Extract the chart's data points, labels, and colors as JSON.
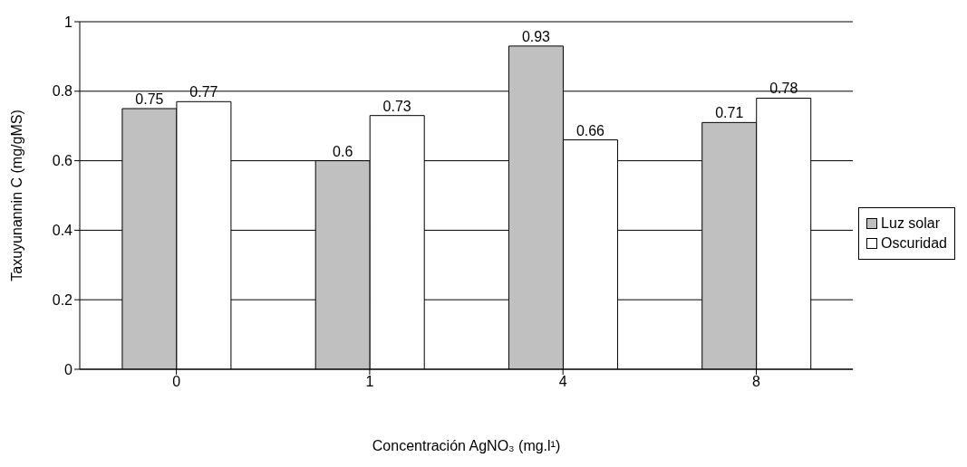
{
  "chart_data": {
    "type": "bar",
    "categories": [
      "0",
      "1",
      "4",
      "8"
    ],
    "series": [
      {
        "name": "Luz solar",
        "color": "#c0c0c0",
        "values": [
          0.75,
          0.6,
          0.93,
          0.71
        ]
      },
      {
        "name": "Oscuridad",
        "color": "#ffffff",
        "values": [
          0.77,
          0.73,
          0.66,
          0.78
        ]
      }
    ],
    "xlabel": "Concentración AgNO₃ (mg.l¹)",
    "ylabel": "Taxuyunannin C (mg/gMS)",
    "ylim": [
      0,
      1
    ],
    "yticks": [
      0,
      0.2,
      0.4,
      0.6,
      0.8,
      1
    ],
    "grid": "y",
    "legend": "right",
    "data_labels": true
  }
}
